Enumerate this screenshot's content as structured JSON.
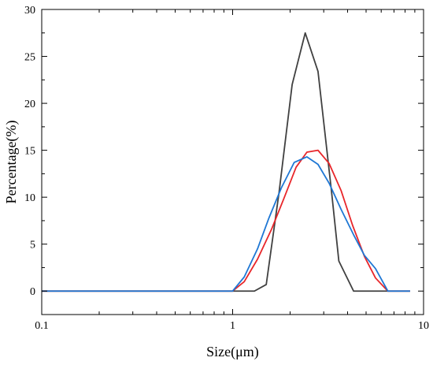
{
  "chart_data": {
    "type": "line",
    "xlabel": "Size(μm)",
    "ylabel": "Percentage(%)",
    "xscale": "log",
    "xlim": [
      0.1,
      10
    ],
    "ylim": [
      -2.5,
      30
    ],
    "grid": false,
    "legend": "none",
    "xticks": [
      0.1,
      1,
      10
    ],
    "xtick_labels": [
      "0.1",
      "1",
      "10"
    ],
    "yticks": [
      0,
      5,
      10,
      15,
      20,
      25,
      30
    ],
    "ytick_labels": [
      "0",
      "5",
      "10",
      "15",
      "20",
      "25",
      "30"
    ],
    "series": [
      {
        "color": "#404040",
        "x": [
          0.1,
          1.0,
          1.3,
          1.5,
          1.75,
          2.05,
          2.4,
          2.8,
          3.3,
          3.6,
          4.3,
          6.5,
          8.5
        ],
        "y": [
          0,
          0,
          0,
          0.7,
          10.5,
          22,
          27.5,
          23.4,
          10.5,
          3.2,
          0,
          0,
          0
        ]
      },
      {
        "color": "#e8262a",
        "x": [
          0.1,
          1.0,
          1.15,
          1.35,
          1.6,
          1.85,
          2.15,
          2.45,
          2.8,
          3.2,
          3.7,
          4.25,
          4.9,
          5.6,
          6.5,
          8.5
        ],
        "y": [
          0,
          0,
          1.0,
          3.4,
          6.6,
          9.8,
          13.2,
          14.8,
          15.0,
          13.6,
          10.7,
          7.0,
          3.7,
          1.4,
          0,
          0
        ]
      },
      {
        "color": "#1f77d4",
        "x": [
          0.1,
          1.0,
          1.15,
          1.35,
          1.55,
          1.8,
          2.1,
          2.45,
          2.8,
          3.2,
          3.7,
          4.3,
          4.9,
          5.6,
          6.5,
          8.5
        ],
        "y": [
          0,
          0,
          1.5,
          4.5,
          7.8,
          11.0,
          13.7,
          14.3,
          13.5,
          11.5,
          8.7,
          6.0,
          3.8,
          2.4,
          0,
          0
        ]
      }
    ]
  }
}
